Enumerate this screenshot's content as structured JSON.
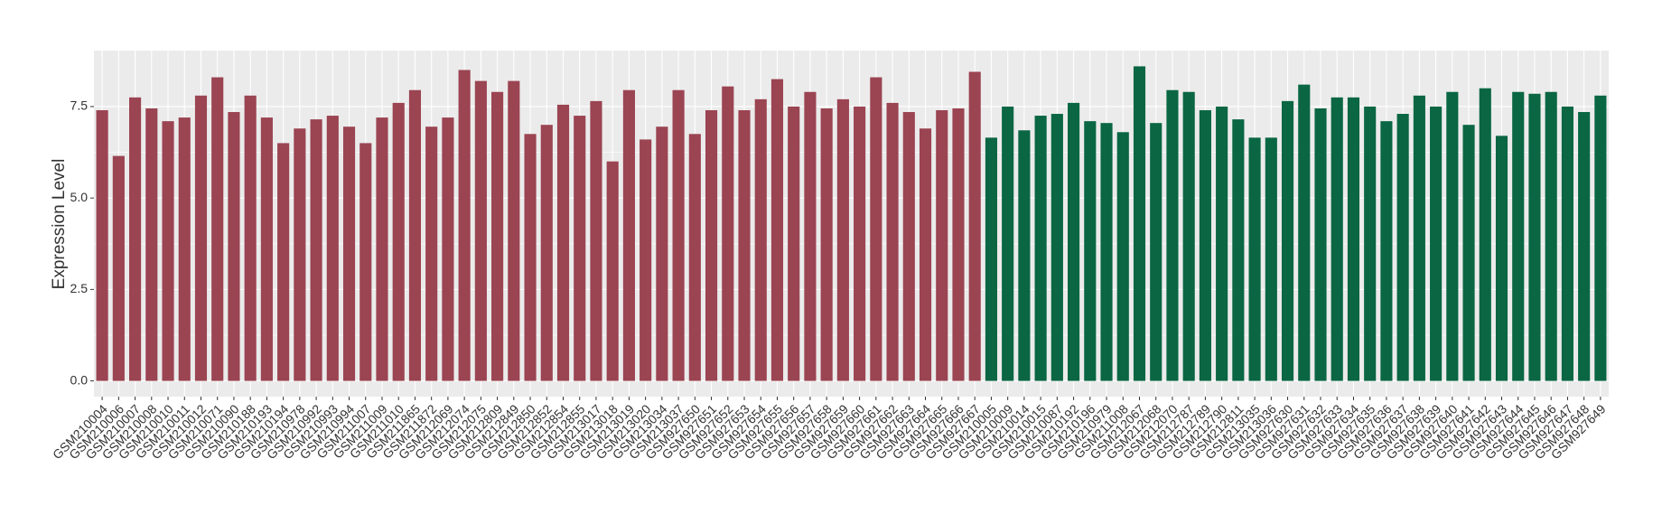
{
  "chart_data": {
    "type": "bar",
    "y_label": "Expression Level",
    "categories": [
      "GSM210004",
      "GSM210006",
      "GSM210007",
      "GSM210008",
      "GSM210010",
      "GSM210011",
      "GSM210012",
      "GSM210071",
      "GSM210090",
      "GSM210188",
      "GSM210193",
      "GSM210194",
      "GSM210978",
      "GSM210992",
      "GSM210993",
      "GSM210994",
      "GSM211007",
      "GSM211009",
      "GSM211010",
      "GSM211865",
      "GSM211872",
      "GSM212069",
      "GSM212074",
      "GSM212075",
      "GSM212809",
      "GSM212849",
      "GSM212850",
      "GSM212852",
      "GSM212854",
      "GSM212855",
      "GSM213017",
      "GSM213018",
      "GSM213019",
      "GSM213020",
      "GSM213034",
      "GSM213037",
      "GSM927650",
      "GSM927651",
      "GSM927652",
      "GSM927653",
      "GSM927654",
      "GSM927655",
      "GSM927656",
      "GSM927657",
      "GSM927658",
      "GSM927659",
      "GSM927660",
      "GSM927661",
      "GSM927662",
      "GSM927663",
      "GSM927664",
      "GSM927665",
      "GSM927666",
      "GSM927667",
      "GSM210005",
      "GSM210009",
      "GSM210014",
      "GSM210015",
      "GSM210087",
      "GSM210192",
      "GSM210196",
      "GSM210979",
      "GSM211008",
      "GSM212067",
      "GSM212068",
      "GSM212070",
      "GSM212787",
      "GSM212789",
      "GSM212790",
      "GSM212811",
      "GSM213035",
      "GSM213036",
      "GSM927630",
      "GSM927631",
      "GSM927632",
      "GSM927633",
      "GSM927634",
      "GSM927635",
      "GSM927636",
      "GSM927637",
      "GSM927638",
      "GSM927639",
      "GSM927640",
      "GSM927641",
      "GSM927642",
      "GSM927643",
      "GSM927644",
      "GSM927645",
      "GSM927646",
      "GSM927647",
      "GSM927648",
      "GSM927649"
    ],
    "series": [
      {
        "color": "#9b4452",
        "values": [
          7.4,
          6.15,
          7.75,
          7.45,
          7.1,
          7.2,
          7.8,
          8.3,
          7.35,
          7.8,
          7.2,
          6.5,
          6.9,
          7.15,
          7.25,
          6.95,
          6.5,
          7.2,
          7.6,
          7.95,
          6.95,
          7.2,
          8.5,
          8.2,
          7.9,
          8.2,
          6.75,
          7.0,
          7.55,
          7.25,
          7.65,
          6.0,
          7.95,
          6.6,
          6.95,
          7.95,
          6.75,
          7.4,
          8.05,
          7.4,
          7.7,
          8.25,
          7.5,
          7.9,
          7.45,
          7.7,
          7.5,
          8.3,
          7.6,
          7.35,
          6.9,
          7.4,
          7.45,
          8.45,
          null,
          null,
          null,
          null,
          null,
          null,
          null,
          null,
          null,
          null,
          null,
          null,
          null,
          null,
          null,
          null,
          null,
          null,
          null,
          null,
          null,
          null,
          null,
          null,
          null,
          null,
          null,
          null,
          null,
          null,
          null,
          null,
          null,
          null,
          null,
          null,
          null,
          null
        ]
      },
      {
        "color": "#0a6643",
        "values": [
          null,
          null,
          null,
          null,
          null,
          null,
          null,
          null,
          null,
          null,
          null,
          null,
          null,
          null,
          null,
          null,
          null,
          null,
          null,
          null,
          null,
          null,
          null,
          null,
          null,
          null,
          null,
          null,
          null,
          null,
          null,
          null,
          null,
          null,
          null,
          null,
          null,
          null,
          null,
          null,
          null,
          null,
          null,
          null,
          null,
          null,
          null,
          null,
          null,
          null,
          null,
          null,
          null,
          null,
          6.65,
          7.5,
          6.85,
          7.25,
          7.3,
          7.6,
          7.1,
          7.05,
          6.8,
          8.6,
          7.05,
          7.95,
          7.9,
          7.4,
          7.5,
          7.15,
          6.65,
          6.65,
          7.65,
          8.1,
          7.45,
          7.75,
          7.75,
          7.5,
          7.1,
          7.3,
          7.8,
          7.5,
          7.9,
          7.0,
          8.0,
          6.7,
          7.9,
          7.85,
          7.9,
          7.5,
          7.35,
          7.8
        ]
      }
    ],
    "ylim": [
      -0.43,
      9.03
    ],
    "yticks": [
      {
        "value": 0,
        "label": "0.0"
      },
      {
        "value": 2.5,
        "label": "2.5"
      },
      {
        "value": 5,
        "label": "5.0"
      },
      {
        "value": 7.5,
        "label": "7.5"
      }
    ],
    "grid": true
  }
}
